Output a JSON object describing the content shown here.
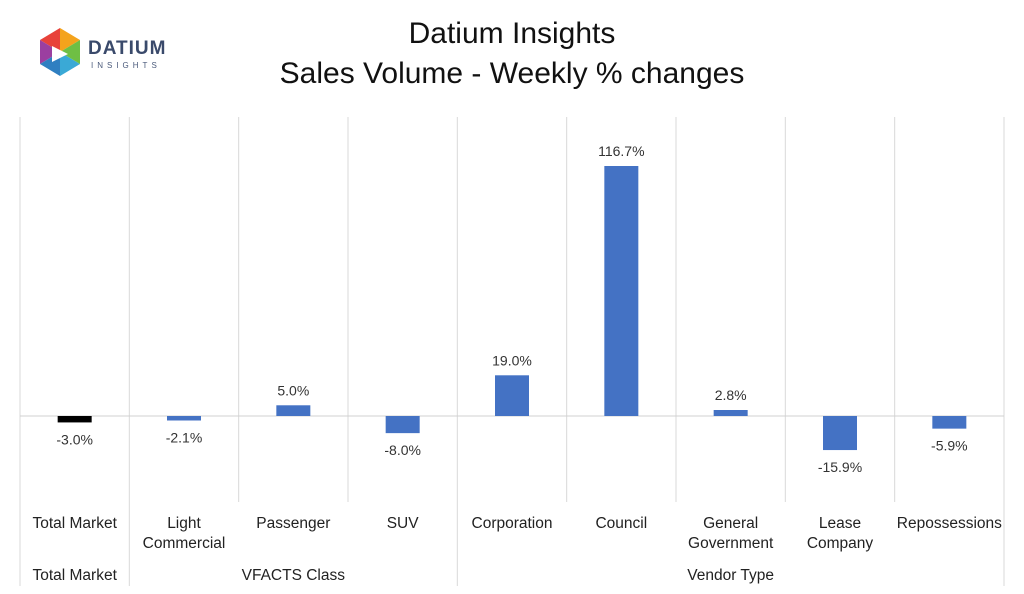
{
  "logo": {
    "wordmark": "DATIUM",
    "submark": "INSIGHTS"
  },
  "chart_data": {
    "type": "bar",
    "title": "Datium Insights",
    "subtitle": "Sales Volume - Weekly % changes",
    "categories": [
      [
        "Total Market"
      ],
      [
        "Light",
        "Commercial"
      ],
      [
        "Passenger"
      ],
      [
        "SUV"
      ],
      [
        "Corporation"
      ],
      [
        "Council"
      ],
      [
        "General",
        "Government"
      ],
      [
        "Lease",
        "Company"
      ],
      [
        "Repossessions"
      ]
    ],
    "values": [
      -3.0,
      -2.1,
      5.0,
      -8.0,
      19.0,
      116.7,
      2.8,
      -15.9,
      -5.9
    ],
    "value_labels": [
      "-3.0%",
      "-2.1%",
      "5.0%",
      "-8.0%",
      "19.0%",
      "116.7%",
      "2.8%",
      "-15.9%",
      "-5.9%"
    ],
    "groups": [
      {
        "name": "Total Market",
        "start": 0,
        "end": 0
      },
      {
        "name": "VFACTS Class",
        "start": 1,
        "end": 3
      },
      {
        "name": "Vendor Type",
        "start": 4,
        "end": 8
      }
    ],
    "colors": [
      "#000000",
      "#4472c4",
      "#4472c4",
      "#4472c4",
      "#4472c4",
      "#4472c4",
      "#4472c4",
      "#4472c4",
      "#4472c4"
    ],
    "ylim": [
      -40,
      130
    ],
    "grid": false,
    "legend": "none"
  }
}
